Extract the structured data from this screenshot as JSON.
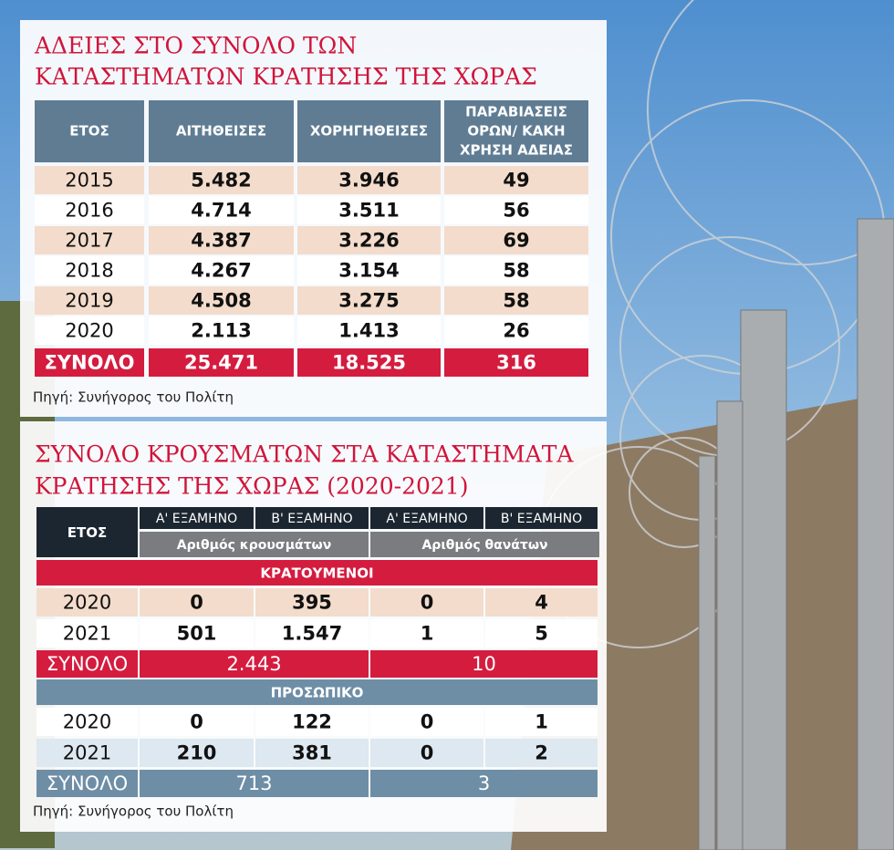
{
  "table1": {
    "title": [
      "ΑΔΕΙΕΣ ΣΤΟ ΣΥΝΟΛΟ ΤΩΝ",
      "ΚΑΤΑΣΤΗΜΑΤΩΝ ΚΡΑΤΗΣΗΣ ΤΗΣ ΧΩΡΑΣ"
    ],
    "headers": [
      [
        "ΕΤΟΣ"
      ],
      [
        "ΑΙΤΗΘΕΙΣΕΣ"
      ],
      [
        "ΧΟΡΗΓΗΘΕΙΣΕΣ"
      ],
      [
        "ΠΑΡΑΒΙΑΣΕΙΣ",
        "ΟΡΩΝ/ ΚΑΚΗ",
        "ΧΡΗΣΗ ΑΔΕΙΑΣ"
      ]
    ],
    "rows": [
      [
        "2015",
        "5.482",
        "3.946",
        "49"
      ],
      [
        "2016",
        "4.714",
        "3.511",
        "56"
      ],
      [
        "2017",
        "4.387",
        "3.226",
        "69"
      ],
      [
        "2018",
        "4.267",
        "3.154",
        "58"
      ],
      [
        "2019",
        "4.508",
        "3.275",
        "58"
      ],
      [
        "2020",
        "2.113",
        "1.413",
        "26"
      ]
    ],
    "total": [
      "ΣΥΝΟΛΟ",
      "25.471",
      "18.525",
      "316"
    ],
    "source": "Πηγή: Συνήγορος του Πολίτη"
  },
  "table2": {
    "title": [
      "ΣΥΝΟΛΟ ΚΡΟΥΣΜΑΤΩΝ ΣΤΑ ΚΑΤΑΣΤΗΜΑΤΑ",
      "ΚΡΑΤΗΣΗΣ ΤΗΣ ΧΩΡΑΣ (2020-2021)"
    ],
    "year_header": "ΕΤΟΣ",
    "period_headers": [
      "Α' ΕΞΑΜΗΝΟ",
      "Β' ΕΞΑΜΗΝΟ",
      "Α' ΕΞΑΜΗΝΟ",
      "Β' ΕΞΑΜΗΝΟ"
    ],
    "group_headers": [
      "Αριθμός κρουσμάτων",
      "Αριθμός θανάτων"
    ],
    "sections": [
      {
        "name": "ΚΡΑΤΟΥΜΕΝΟΙ",
        "rows": [
          [
            "2020",
            "0",
            "395",
            "0",
            "4"
          ],
          [
            "2021",
            "501",
            "1.547",
            "1",
            "5"
          ]
        ],
        "total": [
          "ΣΥΝΟΛΟ",
          "2.443",
          "10"
        ]
      },
      {
        "name": "ΠΡΟΣΩΠΙΚΟ",
        "rows": [
          [
            "2020",
            "0",
            "122",
            "0",
            "1"
          ],
          [
            "2021",
            "210",
            "381",
            "0",
            "2"
          ]
        ],
        "total": [
          "ΣΥΝΟΛΟ",
          "713",
          "3"
        ]
      }
    ],
    "source": "Πηγή: Συνήγορος του Πολίτη"
  }
}
